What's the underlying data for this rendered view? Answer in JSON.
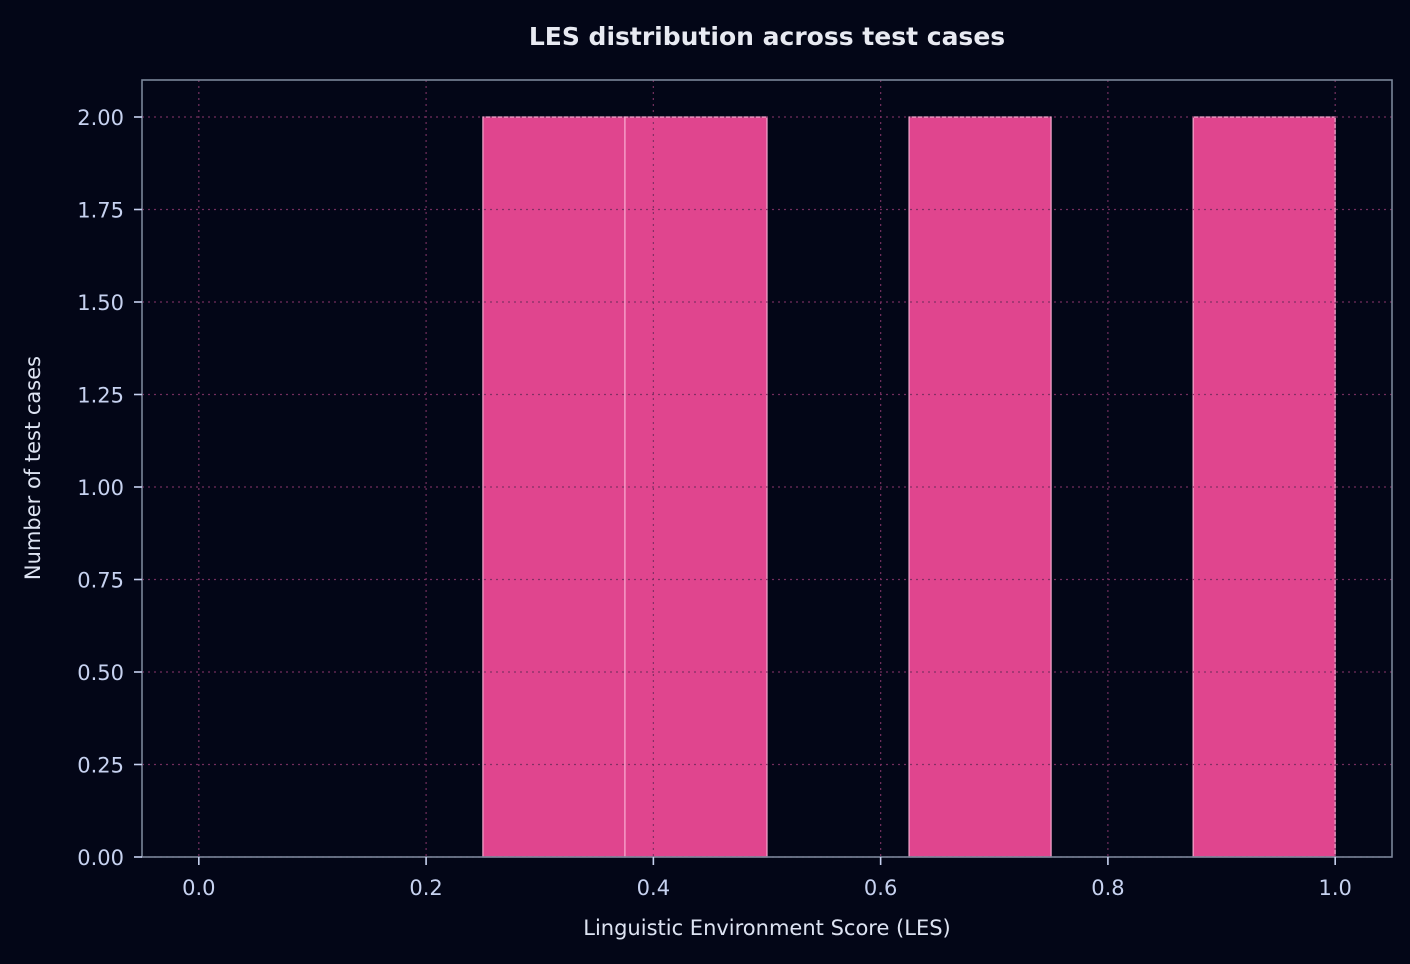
{
  "chart_data": {
    "type": "bar",
    "subtype": "histogram",
    "title": "LES distribution across test cases",
    "xlabel": "Linguistic Environment Score (LES)",
    "ylabel": "Number of test cases",
    "xlim": [
      -0.05,
      1.05
    ],
    "ylim": [
      0,
      2.1
    ],
    "grid": true,
    "legend": null,
    "x_ticks": [
      0.0,
      0.2,
      0.4,
      0.6,
      0.8,
      1.0
    ],
    "x_tick_labels": [
      "0.0",
      "0.2",
      "0.4",
      "0.6",
      "0.8",
      "1.0"
    ],
    "y_ticks": [
      0,
      0.25,
      0.5,
      0.75,
      1.0,
      1.25,
      1.5,
      1.75,
      2.0
    ],
    "y_tick_labels": [
      "0.00",
      "0.25",
      "0.50",
      "0.75",
      "1.00",
      "1.25",
      "1.50",
      "1.75",
      "2.00"
    ],
    "bin_width": 0.125,
    "bins": [
      {
        "start": 0.25,
        "end": 0.375,
        "count": 2
      },
      {
        "start": 0.375,
        "end": 0.5,
        "count": 2
      },
      {
        "start": 0.625,
        "end": 0.75,
        "count": 2
      },
      {
        "start": 0.875,
        "end": 1.0,
        "count": 2
      }
    ],
    "categories": [
      "0.25–0.375",
      "0.375–0.5",
      "0.625–0.75",
      "0.875–1.0"
    ],
    "values": [
      2,
      2,
      2,
      2
    ]
  },
  "colors": {
    "background": "#030617",
    "bar_fill": "#e0458e",
    "bar_edge": "#f7a8cf",
    "spine": "#7a8599",
    "tick_label": "#c7d2f0",
    "title": "#e8eaf2",
    "axis_label": "#dde3f2",
    "grid": "#3a3f55"
  }
}
